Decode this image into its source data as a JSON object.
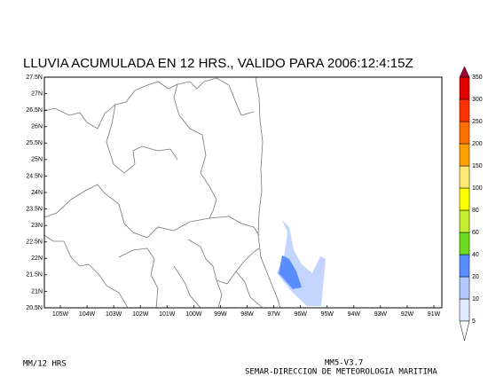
{
  "title": "LLUVIA ACUMULADA EN 12 HRS.,  VALIDO PARA 2006:12:4:15Z",
  "lat_labels": [
    "20.5N",
    "21N",
    "21.5N",
    "22N",
    "22.5N",
    "23N",
    "23.5N",
    "24N",
    "24.5N",
    "25N",
    "25.5N",
    "26N",
    "26.5N",
    "27N",
    "27.5N"
  ],
  "lon_labels": [
    "105W",
    "104W",
    "103W",
    "102W",
    "101W",
    "100W",
    "99W",
    "98W",
    "97W",
    "96W",
    "95W",
    "94W",
    "93W",
    "92W",
    "91W"
  ],
  "colorbar": {
    "levels": [
      5,
      10,
      20,
      40,
      60,
      80,
      100,
      150,
      200,
      250,
      300,
      350
    ],
    "colors": [
      "#e1ebff",
      "#b4c8ff",
      "#5a8cff",
      "#6edc1e",
      "#c3ee32",
      "#ffff00",
      "#ffe873",
      "#ffa000",
      "#ff6e00",
      "#ff3200",
      "#e10000",
      "#a00032"
    ]
  },
  "footer": {
    "units": "MM/12 HRS",
    "model": "MM5-V3.7",
    "agency": "SEMAR-DIRECCION DE METEOROLOGIA MARITIMA"
  }
}
